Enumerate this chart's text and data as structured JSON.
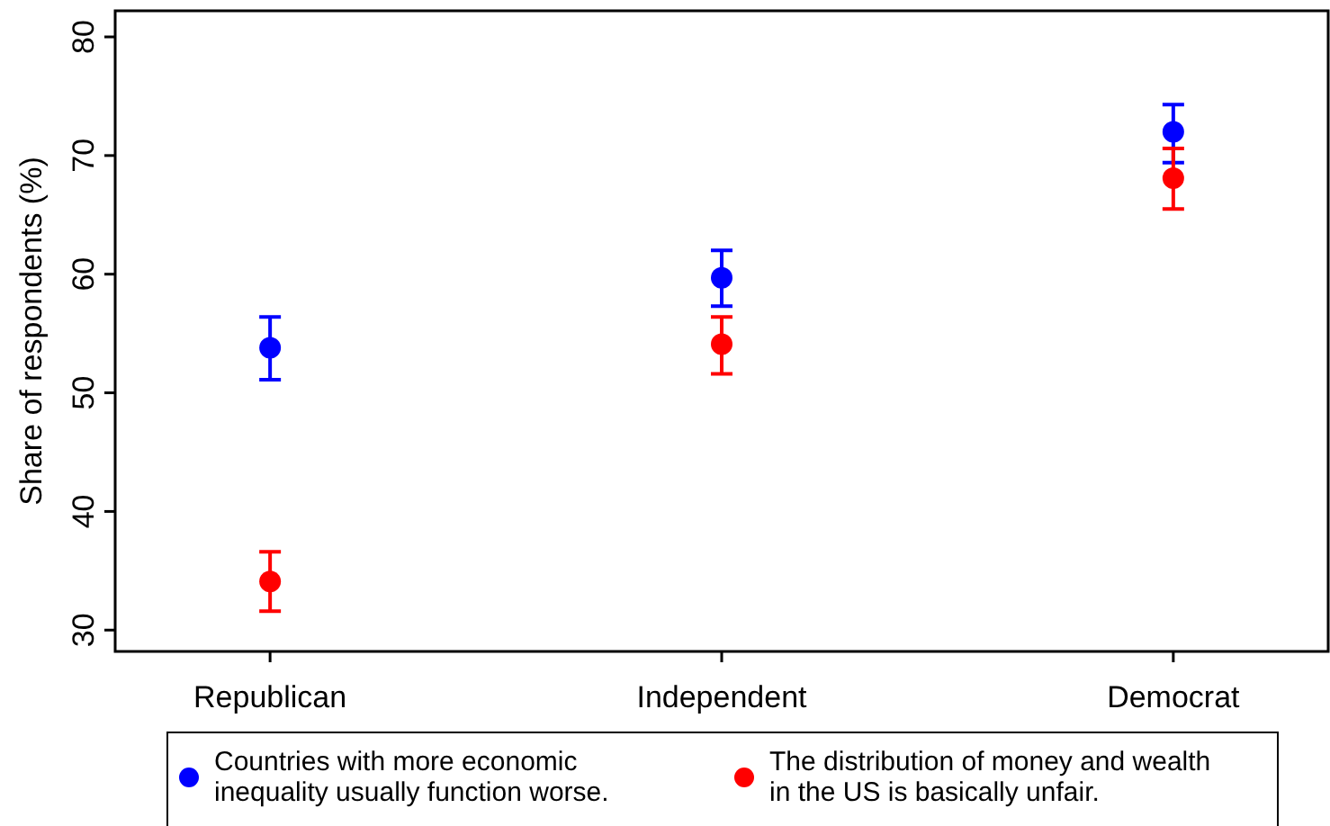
{
  "chart_data": {
    "type": "scatter",
    "ylabel": "Share of respondents (%)",
    "categories": [
      "Republican",
      "Independent",
      "Democrat"
    ],
    "ylim": [
      28.2,
      82.2
    ],
    "yticks": [
      30,
      40,
      50,
      60,
      70,
      80
    ],
    "grid": false,
    "legend": "bottom",
    "marker": "circle",
    "series": [
      {
        "name": "Countries with more economic inequality usually function worse.",
        "color": "#0000ff",
        "values": [
          53.8,
          59.7,
          72.0
        ],
        "errors": [
          [
            51.1,
            56.4
          ],
          [
            57.3,
            62.0
          ],
          [
            69.4,
            74.3
          ]
        ]
      },
      {
        "name": "The distribution of money and wealth in the US is basically unfair.",
        "color": "#ff0000",
        "values": [
          34.1,
          54.1,
          68.1
        ],
        "errors": [
          [
            31.6,
            36.6
          ],
          [
            51.6,
            56.4
          ],
          [
            65.5,
            70.6
          ]
        ]
      }
    ]
  }
}
